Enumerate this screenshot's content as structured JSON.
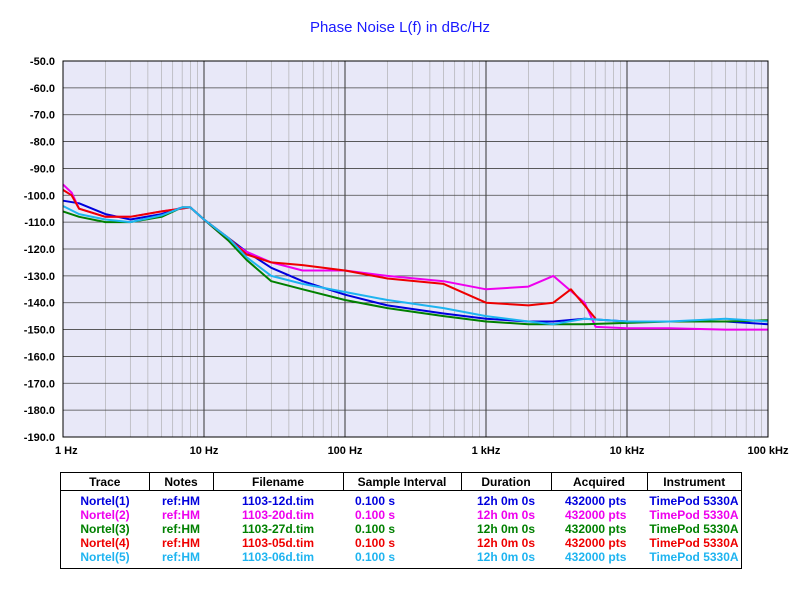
{
  "title": "Phase Noise L(f) in dBc/Hz",
  "chart_data": {
    "type": "line",
    "title": "Phase Noise L(f) in dBc/Hz",
    "x_scale": "log",
    "xlim": [
      1,
      100000
    ],
    "ylim": [
      -190,
      -50
    ],
    "x_ticks": [
      1,
      10,
      100,
      1000,
      10000,
      100000
    ],
    "x_tick_labels": [
      "1 Hz",
      "10 Hz",
      "100 Hz",
      "1 kHz",
      "10 kHz",
      "100 kHz"
    ],
    "y_ticks": [
      -50,
      -60,
      -70,
      -80,
      -90,
      -100,
      -110,
      -120,
      -130,
      -140,
      -150,
      -160,
      -170,
      -180,
      -190
    ],
    "y_tick_labels": [
      "-50.0",
      "-60.0",
      "-70.0",
      "-80.0",
      "-90.0",
      "-100.0",
      "-110.0",
      "-120.0",
      "-130.0",
      "-140.0",
      "-150.0",
      "-160.0",
      "-170.0",
      "-180.0",
      "-190.0"
    ],
    "grid": true,
    "series": [
      {
        "name": "Nortel(1)",
        "color": "#0000dd",
        "x": [
          1,
          1.3,
          2,
          3,
          5,
          7,
          8,
          10,
          15,
          20,
          30,
          50,
          100,
          200,
          500,
          1000,
          2000,
          3000,
          5000,
          10000,
          20000,
          50000,
          100000
        ],
        "y": [
          -102,
          -103,
          -107,
          -109,
          -107,
          -104.5,
          -104.5,
          -109,
          -116,
          -121,
          -127,
          -132,
          -137,
          -141,
          -144,
          -146,
          -147,
          -147,
          -146,
          -147,
          -147,
          -147,
          -148
        ]
      },
      {
        "name": "Nortel(2)",
        "color": "#ee00ee",
        "x": [
          1,
          1.15,
          1.3,
          2,
          3,
          5,
          8,
          10,
          15,
          20,
          30,
          50,
          100,
          200,
          500,
          1000,
          2000,
          3000,
          5000,
          6000,
          10000,
          20000,
          50000,
          100000
        ],
        "y": [
          -96,
          -99,
          -105,
          -108,
          -108,
          -106,
          -104.5,
          -109,
          -117,
          -121,
          -125,
          -128,
          -128,
          -130,
          -132,
          -135,
          -134,
          -130,
          -140,
          -149,
          -149.5,
          -149.5,
          -150,
          -150
        ]
      },
      {
        "name": "Nortel(3)",
        "color": "#008000",
        "x": [
          1,
          1.3,
          2,
          3,
          5,
          7,
          8,
          10,
          15,
          20,
          30,
          50,
          100,
          200,
          500,
          1000,
          2000,
          5000,
          10000,
          20000,
          50000,
          100000
        ],
        "y": [
          -106,
          -108,
          -110,
          -110,
          -108,
          -104.5,
          -104.5,
          -109,
          -117,
          -124,
          -132,
          -135,
          -139,
          -142,
          -145,
          -147,
          -148,
          -148,
          -147.5,
          -147,
          -147,
          -146.5
        ]
      },
      {
        "name": "Nortel(4)",
        "color": "#ee0000",
        "x": [
          1,
          1.15,
          1.3,
          2,
          3,
          5,
          8,
          10,
          15,
          20,
          30,
          50,
          100,
          200,
          500,
          1000,
          2000,
          3000,
          4000,
          5000,
          6000
        ],
        "y": [
          -98,
          -100,
          -105,
          -108,
          -108,
          -106,
          -104.5,
          -109,
          -116,
          -122,
          -125,
          -126,
          -128,
          -131,
          -133,
          -140,
          -141,
          -140,
          -135,
          -141,
          -146
        ]
      },
      {
        "name": "Nortel(5)",
        "color": "#1eb4f0",
        "x": [
          1,
          1.3,
          2,
          3,
          5,
          7,
          8,
          10,
          15,
          20,
          30,
          50,
          100,
          200,
          500,
          1000,
          2000,
          3000,
          5000,
          10000,
          20000,
          50000,
          100000
        ],
        "y": [
          -104,
          -107,
          -109,
          -110,
          -107.5,
          -104.5,
          -104.5,
          -109,
          -116,
          -123,
          -130,
          -133,
          -136,
          -139,
          -142,
          -145,
          -147,
          -148,
          -146,
          -147,
          -147,
          -146,
          -147
        ]
      }
    ]
  },
  "legend": {
    "headers": [
      "Trace",
      "Notes",
      "Filename",
      "Sample Interval",
      "Duration",
      "Acquired",
      "Instrument"
    ],
    "rows": [
      {
        "color": "#0000dd",
        "trace": "Nortel(1)",
        "notes": "ref:HM",
        "filename": "1103-12d.tim",
        "interval": "0.100 s",
        "duration": "12h 0m 0s",
        "acquired": "432000 pts",
        "instrument": "TimePod 5330A"
      },
      {
        "color": "#ee00ee",
        "trace": "Nortel(2)",
        "notes": "ref:HM",
        "filename": "1103-20d.tim",
        "interval": "0.100 s",
        "duration": "12h 0m 0s",
        "acquired": "432000 pts",
        "instrument": "TimePod 5330A"
      },
      {
        "color": "#008000",
        "trace": "Nortel(3)",
        "notes": "ref:HM",
        "filename": "1103-27d.tim",
        "interval": "0.100 s",
        "duration": "12h 0m 0s",
        "acquired": "432000 pts",
        "instrument": "TimePod 5330A"
      },
      {
        "color": "#ee0000",
        "trace": "Nortel(4)",
        "notes": "ref:HM",
        "filename": "1103-05d.tim",
        "interval": "0.100 s",
        "duration": "12h 0m 0s",
        "acquired": "432000 pts",
        "instrument": "TimePod 5330A"
      },
      {
        "color": "#1eb4f0",
        "trace": "Nortel(5)",
        "notes": "ref:HM",
        "filename": "1103-06d.tim",
        "interval": "0.100 s",
        "duration": "12h 0m 0s",
        "acquired": "432000 pts",
        "instrument": "TimePod 5330A"
      }
    ]
  }
}
